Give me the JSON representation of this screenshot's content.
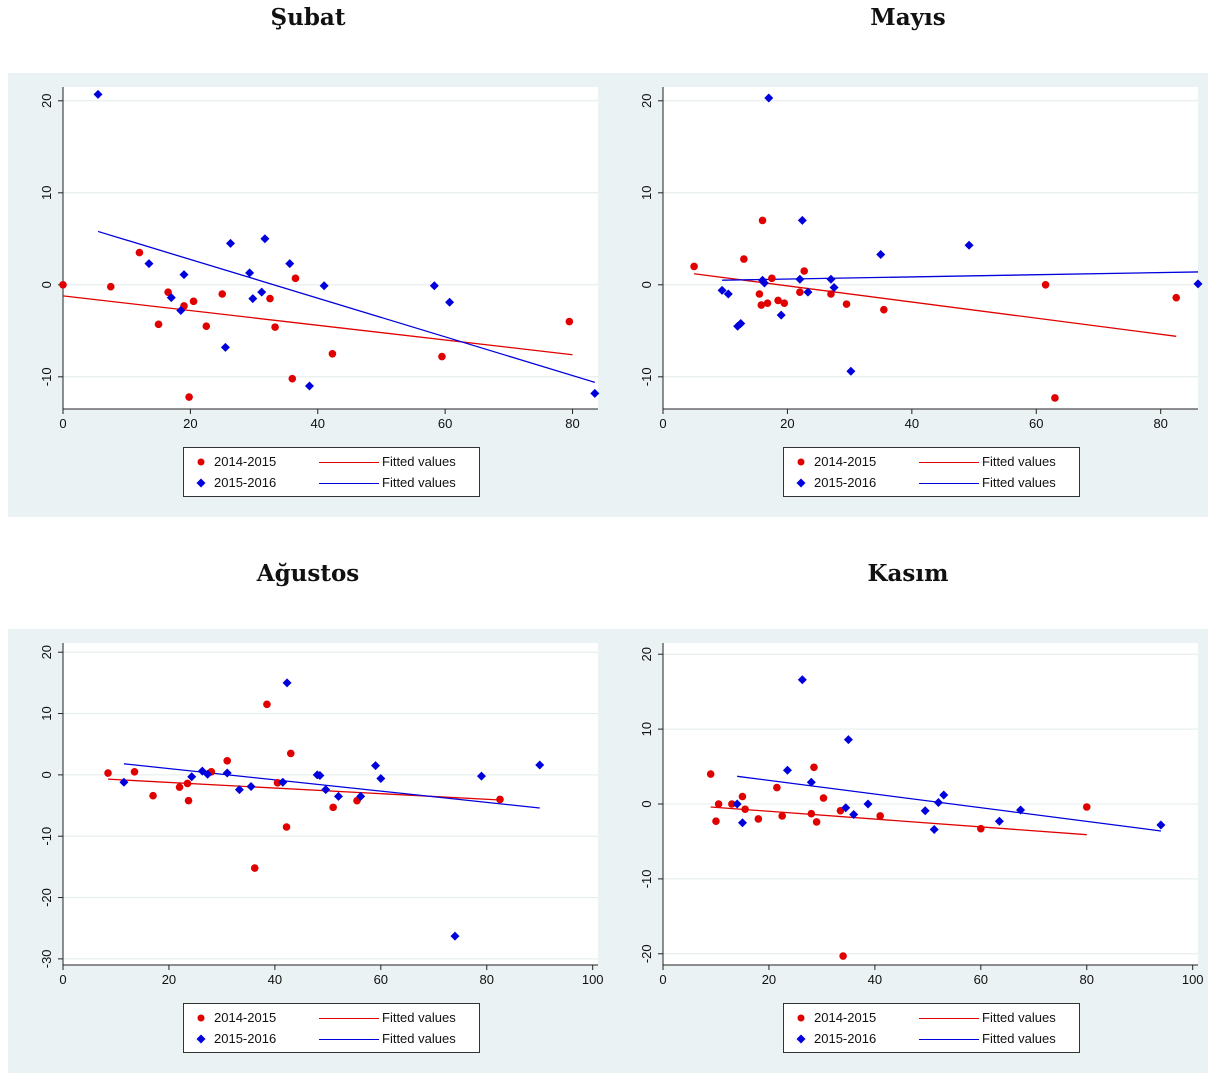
{
  "legend": {
    "series1": "2014-2015",
    "series2": "2015-2016",
    "fit1": "Fitted values",
    "fit2": "Fitted values"
  },
  "colors": {
    "series1": "#e00000",
    "series2": "#0000dd"
  },
  "chart_data": [
    {
      "type": "scatter",
      "title": "Şubat",
      "xlim": [
        0,
        84
      ],
      "ylim": [
        -13.5,
        21.5
      ],
      "xticks": [
        0,
        20,
        40,
        60,
        80
      ],
      "yticks": [
        -10,
        0,
        10,
        20
      ],
      "grid": true,
      "legend_position": "bottom",
      "series": [
        {
          "name": "2014-2015",
          "marker": "circle",
          "color": "#e00000",
          "points": [
            [
              0,
              0
            ],
            [
              7.5,
              -0.2
            ],
            [
              12,
              3.5
            ],
            [
              15,
              -4.3
            ],
            [
              16.5,
              -0.8
            ],
            [
              19,
              -2.3
            ],
            [
              19.8,
              -12.2
            ],
            [
              20.5,
              -1.8
            ],
            [
              22.5,
              -4.5
            ],
            [
              25,
              -1
            ],
            [
              32.5,
              -1.5
            ],
            [
              33.3,
              -4.6
            ],
            [
              36,
              -10.2
            ],
            [
              36.5,
              0.7
            ],
            [
              42.3,
              -7.5
            ],
            [
              59.5,
              -7.8
            ],
            [
              79.5,
              -4
            ]
          ],
          "fit": {
            "x": [
              0,
              80
            ],
            "y": [
              -1.2,
              -7.6
            ]
          }
        },
        {
          "name": "2015-2016",
          "marker": "diamond",
          "color": "#0000dd",
          "points": [
            [
              5.5,
              20.7
            ],
            [
              13.5,
              2.3
            ],
            [
              17,
              -1.4
            ],
            [
              18.5,
              -2.8
            ],
            [
              19,
              1.1
            ],
            [
              25.5,
              -6.8
            ],
            [
              26.3,
              4.5
            ],
            [
              29.3,
              1.3
            ],
            [
              29.8,
              -1.5
            ],
            [
              31.2,
              -0.8
            ],
            [
              31.7,
              5
            ],
            [
              35.6,
              2.3
            ],
            [
              38.7,
              -11
            ],
            [
              41,
              -0.1
            ],
            [
              58.3,
              -0.1
            ],
            [
              60.7,
              -1.9
            ],
            [
              83.5,
              -11.8
            ]
          ],
          "fit": {
            "x": [
              5.5,
              83.5
            ],
            "y": [
              5.8,
              -10.6
            ]
          }
        }
      ]
    },
    {
      "type": "scatter",
      "title": "Mayıs",
      "xlim": [
        0,
        86
      ],
      "ylim": [
        -13.5,
        21.5
      ],
      "xticks": [
        0,
        20,
        40,
        60,
        80
      ],
      "yticks": [
        -10,
        0,
        10,
        20
      ],
      "grid": true,
      "legend_position": "bottom",
      "series": [
        {
          "name": "2014-2015",
          "marker": "circle",
          "color": "#e00000",
          "points": [
            [
              5,
              2
            ],
            [
              13,
              2.8
            ],
            [
              15.5,
              -1
            ],
            [
              15.8,
              -2.2
            ],
            [
              16,
              7
            ],
            [
              16.8,
              -2
            ],
            [
              17.5,
              0.7
            ],
            [
              18.5,
              -1.7
            ],
            [
              19.5,
              -2
            ],
            [
              22,
              -0.8
            ],
            [
              22.7,
              1.5
            ],
            [
              27,
              -1
            ],
            [
              29.5,
              -2.1
            ],
            [
              35.5,
              -2.7
            ],
            [
              61.5,
              0
            ],
            [
              63,
              -12.3
            ],
            [
              82.5,
              -1.4
            ]
          ],
          "fit": {
            "x": [
              5,
              82.5
            ],
            "y": [
              1.2,
              -5.6
            ]
          }
        },
        {
          "name": "2015-2016",
          "marker": "diamond",
          "color": "#0000dd",
          "points": [
            [
              9.5,
              -0.6
            ],
            [
              10.5,
              -1
            ],
            [
              12,
              -4.5
            ],
            [
              12.5,
              -4.2
            ],
            [
              16,
              0.5
            ],
            [
              16.3,
              0.2
            ],
            [
              17,
              20.3
            ],
            [
              19,
              -3.3
            ],
            [
              22,
              0.6
            ],
            [
              22.4,
              7
            ],
            [
              23.3,
              -0.8
            ],
            [
              27,
              0.6
            ],
            [
              27.5,
              -0.3
            ],
            [
              30.2,
              -9.4
            ],
            [
              35,
              3.3
            ],
            [
              49.2,
              4.3
            ],
            [
              86,
              0.1
            ]
          ],
          "fit": {
            "x": [
              9.5,
              86
            ],
            "y": [
              0.5,
              1.4
            ]
          }
        }
      ]
    },
    {
      "type": "scatter",
      "title": "Ağustos",
      "xlim": [
        0,
        101
      ],
      "ylim": [
        -31,
        21.5
      ],
      "xticks": [
        0,
        20,
        40,
        60,
        80,
        100
      ],
      "yticks": [
        -30,
        -20,
        -10,
        0,
        10,
        20
      ],
      "grid": true,
      "legend_position": "bottom",
      "series": [
        {
          "name": "2014-2015",
          "marker": "circle",
          "color": "#e00000",
          "points": [
            [
              8.5,
              0.3
            ],
            [
              13.5,
              0.5
            ],
            [
              17,
              -3.4
            ],
            [
              22,
              -2
            ],
            [
              23.5,
              -1.4
            ],
            [
              23.7,
              -4.2
            ],
            [
              28,
              0.5
            ],
            [
              31,
              2.3
            ],
            [
              36.2,
              -15.2
            ],
            [
              38.5,
              11.5
            ],
            [
              40.5,
              -1.3
            ],
            [
              42.2,
              -8.5
            ],
            [
              43,
              3.5
            ],
            [
              51,
              -5.3
            ],
            [
              55.5,
              -4.2
            ],
            [
              82.5,
              -4
            ]
          ],
          "fit": {
            "x": [
              8.5,
              82.5
            ],
            "y": [
              -0.7,
              -4.1
            ]
          }
        },
        {
          "name": "2015-2016",
          "marker": "diamond",
          "color": "#0000dd",
          "points": [
            [
              11.5,
              -1.2
            ],
            [
              24.3,
              -0.3
            ],
            [
              26.3,
              0.6
            ],
            [
              27.3,
              0.1
            ],
            [
              31,
              0.3
            ],
            [
              33.3,
              -2.4
            ],
            [
              35.5,
              -1.9
            ],
            [
              41.5,
              -1.2
            ],
            [
              42.3,
              15
            ],
            [
              48,
              0
            ],
            [
              48.5,
              -0.1
            ],
            [
              49.6,
              -2.4
            ],
            [
              52,
              -3.5
            ],
            [
              56.2,
              -3.5
            ],
            [
              59,
              1.5
            ],
            [
              60,
              -0.6
            ],
            [
              74,
              -26.3
            ],
            [
              79,
              -0.2
            ],
            [
              90,
              1.6
            ]
          ],
          "fit": {
            "x": [
              11.5,
              90
            ],
            "y": [
              1.8,
              -5.4
            ]
          }
        }
      ]
    },
    {
      "type": "scatter",
      "title": "Kasım",
      "xlim": [
        0,
        101
      ],
      "ylim": [
        -21.5,
        21.5
      ],
      "xticks": [
        0,
        20,
        40,
        60,
        80,
        100
      ],
      "yticks": [
        -20,
        -10,
        0,
        10,
        20
      ],
      "grid": true,
      "legend_position": "bottom",
      "series": [
        {
          "name": "2014-2015",
          "marker": "circle",
          "color": "#e00000",
          "points": [
            [
              9,
              4
            ],
            [
              10,
              -2.3
            ],
            [
              10.5,
              0
            ],
            [
              13,
              0
            ],
            [
              15,
              1
            ],
            [
              15.5,
              -0.7
            ],
            [
              18,
              -2
            ],
            [
              21.5,
              2.2
            ],
            [
              22.5,
              -1.6
            ],
            [
              28,
              -1.3
            ],
            [
              28.5,
              4.9
            ],
            [
              29,
              -2.4
            ],
            [
              30.3,
              0.8
            ],
            [
              33.5,
              -0.9
            ],
            [
              34,
              -20.3
            ],
            [
              41,
              -1.6
            ],
            [
              60,
              -3.3
            ],
            [
              80,
              -0.4
            ]
          ],
          "fit": {
            "x": [
              9,
              80
            ],
            "y": [
              -0.4,
              -4.1
            ]
          }
        },
        {
          "name": "2015-2016",
          "marker": "diamond",
          "color": "#0000dd",
          "points": [
            [
              14,
              0
            ],
            [
              15,
              -2.5
            ],
            [
              23.5,
              4.5
            ],
            [
              26.3,
              16.6
            ],
            [
              28,
              2.9
            ],
            [
              34.5,
              -0.5
            ],
            [
              35,
              8.6
            ],
            [
              36,
              -1.4
            ],
            [
              38.7,
              0
            ],
            [
              52,
              0.2
            ],
            [
              53,
              1.2
            ],
            [
              49.5,
              -0.9
            ],
            [
              51.2,
              -3.4
            ],
            [
              63.5,
              -2.3
            ],
            [
              67.5,
              -0.8
            ],
            [
              94,
              -2.8
            ]
          ],
          "fit": {
            "x": [
              14,
              94
            ],
            "y": [
              3.7,
              -3.6
            ]
          }
        }
      ]
    }
  ]
}
